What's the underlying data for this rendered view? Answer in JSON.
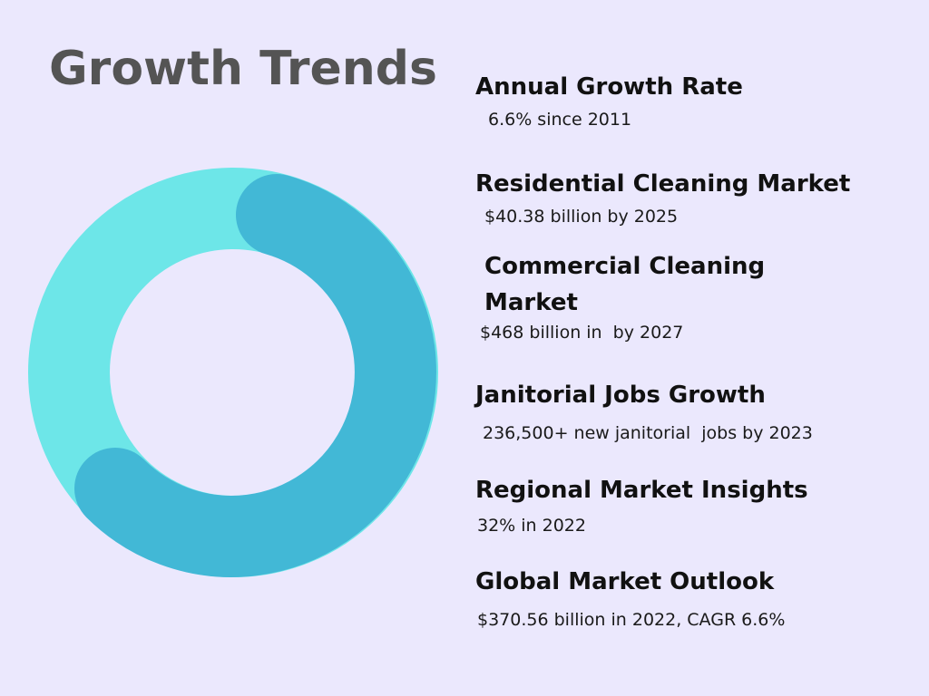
{
  "title": "Growth Trends",
  "colors": {
    "background": "#ebe8fd",
    "donut_light": "#6de6e8",
    "donut_dark": "#42b8d6",
    "title": "#545454"
  },
  "items": [
    {
      "heading": "Annual Growth Rate",
      "detail": "6.6% since 2011"
    },
    {
      "heading": "Residential Cleaning Market",
      "detail": "$40.38 billion by 2025"
    },
    {
      "heading": "Commercial Cleaning Market",
      "detail": "$468 billion in  by 2027"
    },
    {
      "heading": "Janitorial Jobs Growth",
      "detail": "236,500+ new janitorial  jobs by 2023"
    },
    {
      "heading": "Regional Market Insights",
      "detail": "32% in 2022"
    },
    {
      "heading": "Global Market Outlook",
      "detail": "$370.56 billion in 2022, CAGR 6.6%"
    }
  ]
}
